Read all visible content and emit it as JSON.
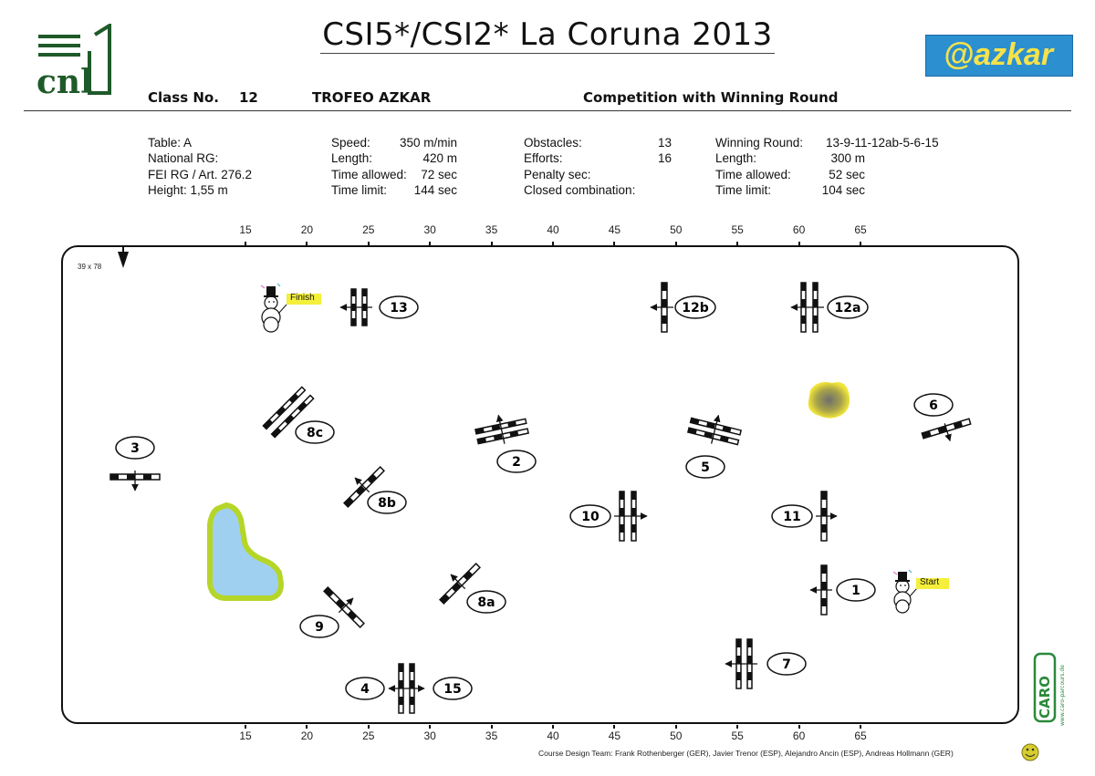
{
  "title": "CSI5*/CSI2* La Coruna 2013",
  "logos": {
    "left": "cnl",
    "right": "azkar",
    "caro_main": "CARO",
    "caro_url": "www.caro-parcours.de"
  },
  "header": {
    "class_label": "Class No.",
    "class_no": "12",
    "class_name": "TROFEO AZKAR",
    "competition": "Competition with Winning Round"
  },
  "info": {
    "col1": [
      "Table: A",
      "National RG:",
      "FEI RG / Art. 276.2",
      "Height: 1,55 m"
    ],
    "col2": [
      {
        "label": "Speed:",
        "value": "350 m/min"
      },
      {
        "label": "Length:",
        "value": "420 m"
      },
      {
        "label": "Time allowed:",
        "value": "72 sec"
      },
      {
        "label": "Time limit:",
        "value": "144 sec"
      }
    ],
    "col3": [
      {
        "label": "Obstacles:",
        "value": "13"
      },
      {
        "label": "Efforts:",
        "value": "16"
      },
      {
        "label": "Penalty sec:",
        "value": ""
      },
      {
        "label": "Closed combination:",
        "value": ""
      }
    ],
    "col4": [
      {
        "label": "Winning Round:",
        "value": "13-9-11-12ab-5-6-15"
      },
      {
        "label": "Length:",
        "value": "300 m"
      },
      {
        "label": "Time allowed:",
        "value": "52 sec"
      },
      {
        "label": "Time limit:",
        "value": "104 sec"
      }
    ]
  },
  "ruler_labels": [
    "15",
    "20",
    "25",
    "30",
    "35",
    "40",
    "45",
    "50",
    "55",
    "60",
    "65"
  ],
  "arena_size": "39 x 78",
  "start_label": "Start",
  "finish_label": "Finish",
  "fences": [
    "1",
    "2",
    "3",
    "4",
    "5",
    "6",
    "7",
    "8a",
    "8b",
    "8c",
    "9",
    "10",
    "11",
    "12a",
    "12b",
    "13",
    "15"
  ],
  "credit": "Course Design Team:    Frank Rothenberger (GER), Javier Trenor (ESP), Alejandro Ancin (ESP), Andreas Hollmann (GER)",
  "colors": {
    "water": "#9fd0f0",
    "water_edge": "#b5d628",
    "bush": "#8a8f5a",
    "highlight": "#f4ef3a",
    "azkar_bg": "#2b8fd0",
    "azkar_text": "#f7e24a",
    "caro": "#2b8a3a"
  }
}
